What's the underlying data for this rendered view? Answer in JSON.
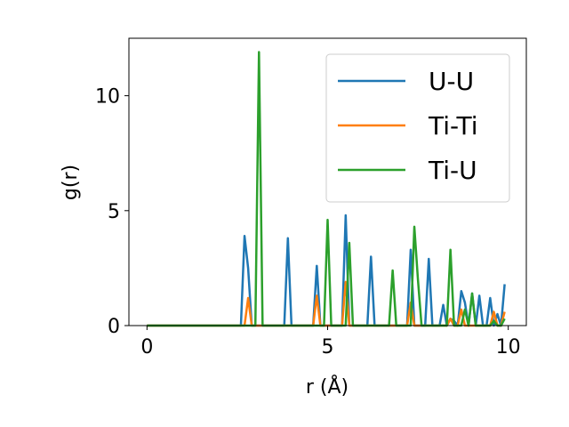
{
  "chart_data": {
    "type": "line",
    "title": "",
    "xlabel": "r (Å)",
    "ylabel": "g(r)",
    "xlim": [
      -0.5,
      10.5
    ],
    "ylim": [
      0,
      12.5
    ],
    "xticks": [
      0,
      5,
      10
    ],
    "xtick_labels": [
      "0",
      "5",
      "10"
    ],
    "yticks": [
      0,
      5,
      10
    ],
    "ytick_labels": [
      "0",
      "5",
      "10"
    ],
    "grid": false,
    "legend_position": "top-right",
    "x": [
      0,
      0.1,
      0.2,
      0.3,
      0.4,
      0.5,
      0.6,
      0.7,
      0.8,
      0.9,
      1.0,
      1.1,
      1.2,
      1.3,
      1.4,
      1.5,
      1.6,
      1.7,
      1.8,
      1.9,
      2.0,
      2.1,
      2.2,
      2.3,
      2.4,
      2.5,
      2.6,
      2.7,
      2.8,
      2.9,
      3.0,
      3.1,
      3.2,
      3.3,
      3.4,
      3.5,
      3.6,
      3.7,
      3.8,
      3.9,
      4.0,
      4.1,
      4.2,
      4.3,
      4.4,
      4.5,
      4.6,
      4.7,
      4.8,
      4.9,
      5.0,
      5.1,
      5.2,
      5.3,
      5.4,
      5.5,
      5.6,
      5.7,
      5.8,
      5.9,
      6.0,
      6.1,
      6.2,
      6.3,
      6.4,
      6.5,
      6.6,
      6.7,
      6.8,
      6.9,
      7.0,
      7.1,
      7.2,
      7.3,
      7.4,
      7.5,
      7.6,
      7.7,
      7.8,
      7.9,
      8.0,
      8.1,
      8.2,
      8.3,
      8.4,
      8.5,
      8.6,
      8.7,
      8.8,
      8.9,
      9.0,
      9.1,
      9.2,
      9.3,
      9.4,
      9.5,
      9.6,
      9.7,
      9.8,
      9.9
    ],
    "series": [
      {
        "name": "U-U",
        "color": "#1f77b4",
        "values": [
          0,
          0,
          0,
          0,
          0,
          0,
          0,
          0,
          0,
          0,
          0,
          0,
          0,
          0,
          0,
          0,
          0,
          0,
          0,
          0,
          0,
          0,
          0,
          0,
          0,
          0,
          0,
          3.9,
          2.5,
          0,
          0,
          0,
          0,
          0,
          0,
          0,
          0,
          0,
          0,
          3.8,
          0,
          0,
          0,
          0,
          0,
          0,
          0,
          2.6,
          0,
          0,
          0,
          0,
          0,
          0,
          0,
          4.8,
          0,
          0,
          0,
          0,
          0,
          0,
          3.0,
          0,
          0,
          0,
          0,
          0,
          0,
          0,
          0,
          0,
          0,
          3.3,
          0,
          0,
          0,
          0,
          2.9,
          0,
          0,
          0,
          0.9,
          0,
          0.3,
          0.2,
          0,
          1.5,
          1.0,
          0,
          1.4,
          0,
          1.3,
          0,
          0,
          1.2,
          0,
          0.5,
          0,
          1.8
        ]
      },
      {
        "name": "Ti-Ti",
        "color": "#ff7f0e",
        "values": [
          0,
          0,
          0,
          0,
          0,
          0,
          0,
          0,
          0,
          0,
          0,
          0,
          0,
          0,
          0,
          0,
          0,
          0,
          0,
          0,
          0,
          0,
          0,
          0,
          0,
          0,
          0,
          0,
          1.2,
          0,
          0,
          0,
          0,
          0,
          0,
          0,
          0,
          0,
          0,
          0,
          0,
          0,
          0,
          0,
          0,
          0,
          0,
          1.3,
          0,
          0,
          0,
          0,
          0,
          0,
          0,
          1.9,
          0,
          0,
          0,
          0,
          0,
          0,
          0,
          0,
          0,
          0,
          0,
          0,
          0,
          0,
          0,
          0,
          0,
          1.0,
          0,
          0,
          0,
          0,
          0,
          0,
          0,
          0,
          0,
          0,
          0.3,
          0,
          0,
          0.7,
          0,
          0,
          0,
          0,
          0,
          0,
          0,
          0,
          0.6,
          0,
          0,
          0.6
        ]
      },
      {
        "name": "Ti-U",
        "color": "#2ca02c",
        "values": [
          0,
          0,
          0,
          0,
          0,
          0,
          0,
          0,
          0,
          0,
          0,
          0,
          0,
          0,
          0,
          0,
          0,
          0,
          0,
          0,
          0,
          0,
          0,
          0,
          0,
          0,
          0,
          0,
          0,
          0,
          0,
          11.9,
          0,
          0,
          0,
          0,
          0,
          0,
          0,
          0,
          0,
          0,
          0,
          0,
          0,
          0,
          0,
          0,
          0,
          0,
          4.6,
          0,
          0,
          0,
          0,
          0,
          3.6,
          0,
          0,
          0,
          0,
          0,
          0,
          0,
          0,
          0,
          0,
          0,
          2.4,
          0,
          0,
          0,
          0,
          0,
          4.3,
          2.0,
          0,
          0,
          0,
          0,
          0,
          0,
          0,
          0,
          3.3,
          0,
          0,
          0,
          0.7,
          0,
          1.4,
          0,
          0,
          0,
          0,
          0,
          0.2,
          0,
          0,
          0.3
        ]
      }
    ]
  }
}
